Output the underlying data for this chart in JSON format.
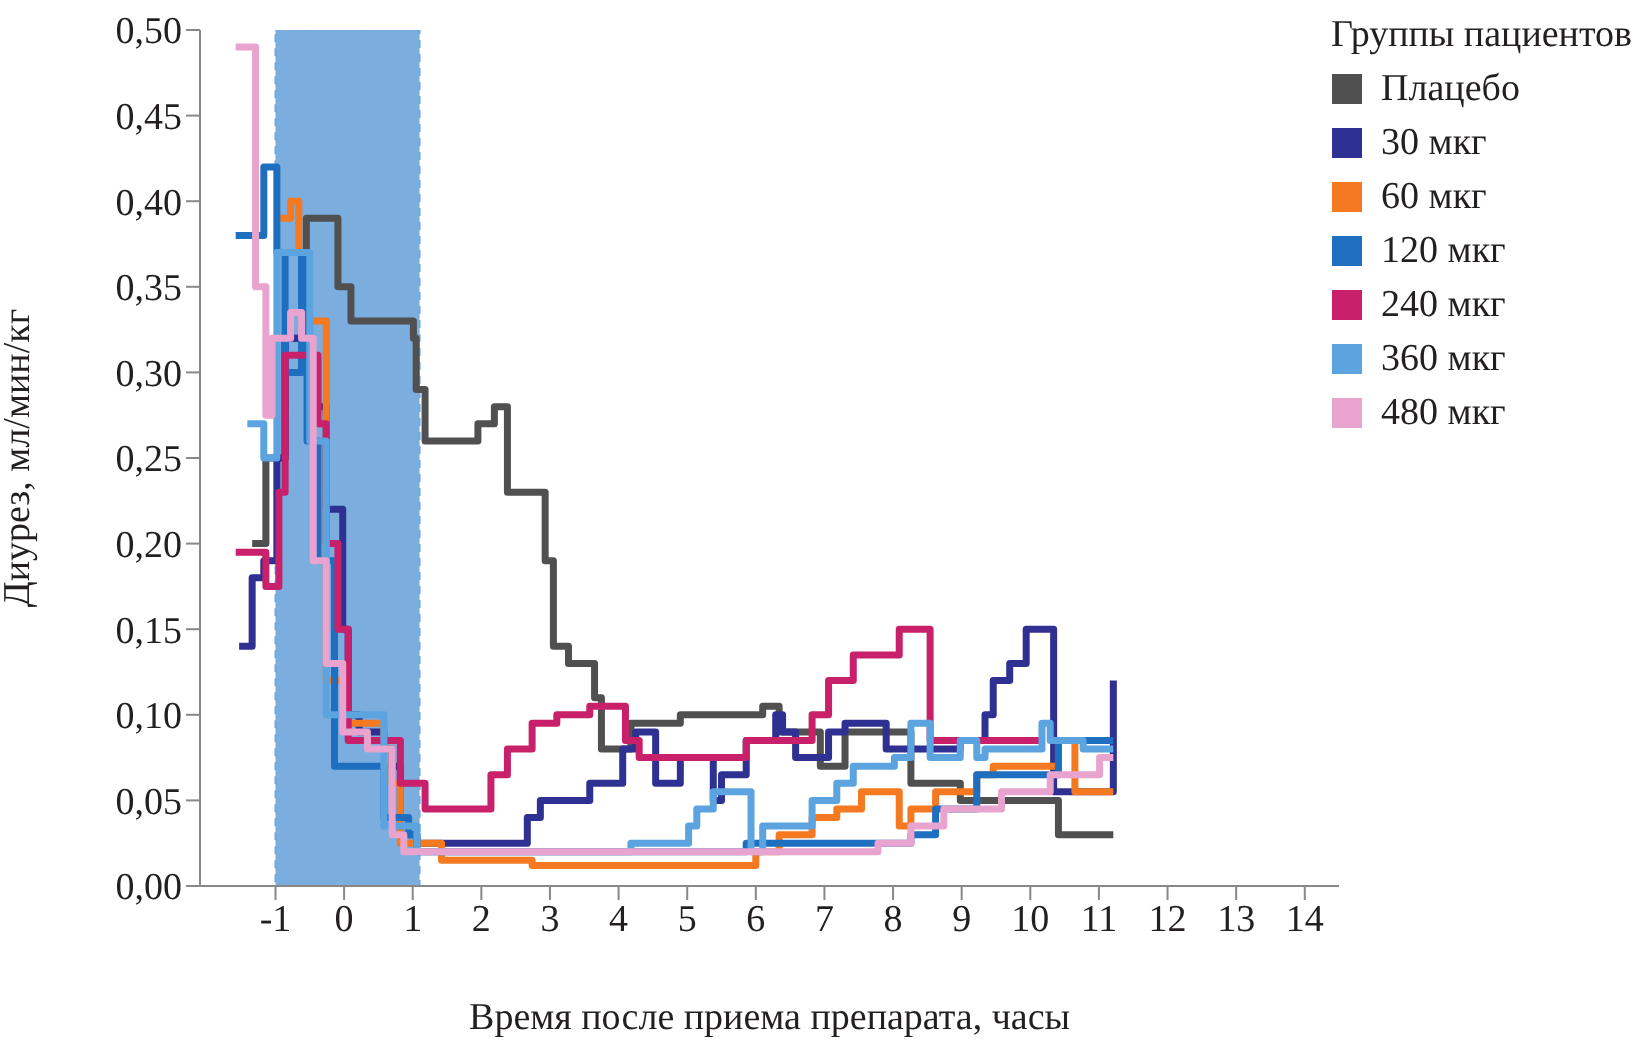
{
  "chart_data": {
    "type": "step",
    "xlabel": "Время после приема препарата, часы",
    "ylabel": "Диурез, мл/мин/кг",
    "legend_title": "Группы пациентов",
    "legend": "top right",
    "xlim": [
      -2.1,
      14.5
    ],
    "xticks": [
      -1,
      0,
      1,
      2,
      3,
      4,
      5,
      6,
      7,
      8,
      9,
      10,
      11,
      12,
      13,
      14
    ],
    "ylim": [
      0,
      0.5
    ],
    "yticks": [
      {
        "value": 0,
        "label": "0,00"
      },
      {
        "value": 0.05,
        "label": "0,05"
      },
      {
        "value": 0.1,
        "label": "0,10"
      },
      {
        "value": 0.15,
        "label": "0,15"
      },
      {
        "value": 0.2,
        "label": "0,20"
      },
      {
        "value": 0.25,
        "label": "0,25"
      },
      {
        "value": 0.3,
        "label": "0,30"
      },
      {
        "value": 0.35,
        "label": "0,35"
      },
      {
        "value": 0.4,
        "label": "0,40"
      },
      {
        "value": 0.45,
        "label": "0,45"
      },
      {
        "value": 0.5,
        "label": "0,50"
      }
    ],
    "bands": [
      {
        "axis": "x",
        "from": -1,
        "to": 1.1,
        "color": "#74a9dc"
      }
    ],
    "series": [
      {
        "name": "Плацебо",
        "color": "#505050",
        "x": [
          -1.34,
          -1.14,
          -0.86,
          -0.55,
          -0.09,
          0.1,
          1.01,
          1.05,
          1.18,
          1.3,
          1.95,
          2.19,
          2.38,
          2.93,
          3.05,
          3.27,
          3.65,
          3.75,
          4.18,
          4.9,
          5.5,
          6.1,
          6.34,
          6.75,
          6.94,
          7.3,
          7.66,
          7.9,
          8.26,
          8.98,
          9.58,
          10.41,
          11.21
        ],
        "values": [
          0.2,
          0.25,
          0.32,
          0.39,
          0.35,
          0.33,
          0.32,
          0.29,
          0.26,
          0.26,
          0.27,
          0.28,
          0.23,
          0.19,
          0.14,
          0.13,
          0.11,
          0.08,
          0.095,
          0.1,
          0.1,
          0.105,
          0.09,
          0.09,
          0.07,
          0.09,
          0.09,
          0.09,
          0.06,
          0.05,
          0.05,
          0.03,
          0.03
        ]
      },
      {
        "name": "30 мкг",
        "color": "#2e3192",
        "x": [
          -1.53,
          -1.34,
          -1.17,
          -0.98,
          -0.86,
          -0.5,
          -0.26,
          -0.02,
          0.06,
          0.22,
          0.58,
          0.7,
          0.82,
          1.06,
          2.67,
          2.86,
          3.58,
          4.06,
          4.25,
          4.54,
          4.9,
          5.38,
          5.5,
          5.86,
          6.29,
          6.39,
          6.58,
          7.06,
          7.3,
          7.54,
          7.9,
          8.14,
          8.98,
          9.22,
          9.34,
          9.46,
          9.7,
          9.94,
          10.34,
          11.21
        ],
        "values": [
          0.14,
          0.18,
          0.19,
          0.25,
          0.32,
          0.28,
          0.22,
          0.15,
          0.1,
          0.09,
          0.08,
          0.07,
          0.03,
          0.025,
          0.04,
          0.05,
          0.06,
          0.08,
          0.09,
          0.06,
          0.075,
          0.05,
          0.065,
          0.085,
          0.1,
          0.09,
          0.075,
          0.09,
          0.095,
          0.095,
          0.08,
          0.08,
          0.085,
          0.085,
          0.1,
          0.12,
          0.13,
          0.15,
          0.055,
          0.12
        ]
      },
      {
        "name": "60 мкг",
        "color": "#f47920",
        "x": [
          -0.98,
          -0.78,
          -0.66,
          -0.54,
          -0.26,
          -0.02,
          0.58,
          0.7,
          0.82,
          1.42,
          2.74,
          6.0,
          6.34,
          6.82,
          7.18,
          7.54,
          8.09,
          8.26,
          8.62,
          9.22,
          9.46,
          10.41,
          10.65,
          11.21
        ],
        "values": [
          0.39,
          0.4,
          0.37,
          0.33,
          0.12,
          0.095,
          0.08,
          0.06,
          0.025,
          0.015,
          0.012,
          0.02,
          0.03,
          0.04,
          0.045,
          0.055,
          0.035,
          0.045,
          0.055,
          0.065,
          0.07,
          0.085,
          0.055,
          0.055
        ]
      },
      {
        "name": "120 мкг",
        "color": "#1f6fc0",
        "x": [
          -1.58,
          -1.17,
          -0.98,
          -0.86,
          -0.62,
          -0.54,
          -0.38,
          -0.14,
          0.22,
          0.58,
          0.94,
          1.06,
          5.86,
          8.26,
          8.62,
          9.22,
          10.41,
          11.21
        ],
        "values": [
          0.38,
          0.42,
          0.37,
          0.3,
          0.37,
          0.26,
          0.19,
          0.07,
          0.07,
          0.04,
          0.03,
          0.02,
          0.025,
          0.03,
          0.045,
          0.065,
          0.085,
          0.085
        ]
      },
      {
        "name": "240 мкг",
        "color": "#c8206a",
        "x": [
          -1.58,
          -1.14,
          -0.95,
          -0.86,
          -0.38,
          -0.26,
          -0.09,
          0.06,
          0.82,
          1.18,
          2.14,
          2.38,
          2.74,
          3.1,
          3.58,
          4.1,
          4.3,
          5.86,
          6.82,
          7.06,
          7.42,
          8.09,
          8.54,
          10.17
        ],
        "values": [
          0.195,
          0.175,
          0.23,
          0.31,
          0.27,
          0.2,
          0.15,
          0.085,
          0.06,
          0.045,
          0.065,
          0.08,
          0.095,
          0.1,
          0.105,
          0.085,
          0.075,
          0.085,
          0.1,
          0.12,
          0.135,
          0.15,
          0.085,
          0.085
        ]
      },
      {
        "name": "360 мкг",
        "color": "#5ba4e0",
        "x": [
          -1.41,
          -1.17,
          -0.98,
          -0.5,
          -0.26,
          0.58,
          1.06,
          4.18,
          5.02,
          5.14,
          5.38,
          5.93,
          6.1,
          6.82,
          7.18,
          7.42,
          7.78,
          8.02,
          8.26,
          8.54,
          8.98,
          9.22,
          9.34,
          10.17,
          10.29,
          10.77,
          11.21
        ],
        "values": [
          0.27,
          0.25,
          0.37,
          0.26,
          0.1,
          0.035,
          0.02,
          0.025,
          0.035,
          0.045,
          0.055,
          0.02,
          0.035,
          0.05,
          0.06,
          0.07,
          0.07,
          0.075,
          0.095,
          0.075,
          0.085,
          0.075,
          0.08,
          0.095,
          0.085,
          0.08,
          0.08
        ]
      },
      {
        "name": "480 мкг",
        "color": "#e9a3cf",
        "x": [
          -1.58,
          -1.29,
          -1.14,
          -1.05,
          -0.78,
          -0.62,
          -0.45,
          -0.26,
          -0.02,
          0.34,
          0.7,
          0.87,
          2.02,
          7.78,
          8.26,
          8.74,
          9.58,
          10.29,
          11.01,
          11.21
        ],
        "values": [
          0.49,
          0.35,
          0.275,
          0.32,
          0.335,
          0.32,
          0.19,
          0.13,
          0.09,
          0.08,
          0.03,
          0.02,
          0.02,
          0.025,
          0.035,
          0.045,
          0.055,
          0.065,
          0.075,
          0.075
        ]
      }
    ]
  }
}
